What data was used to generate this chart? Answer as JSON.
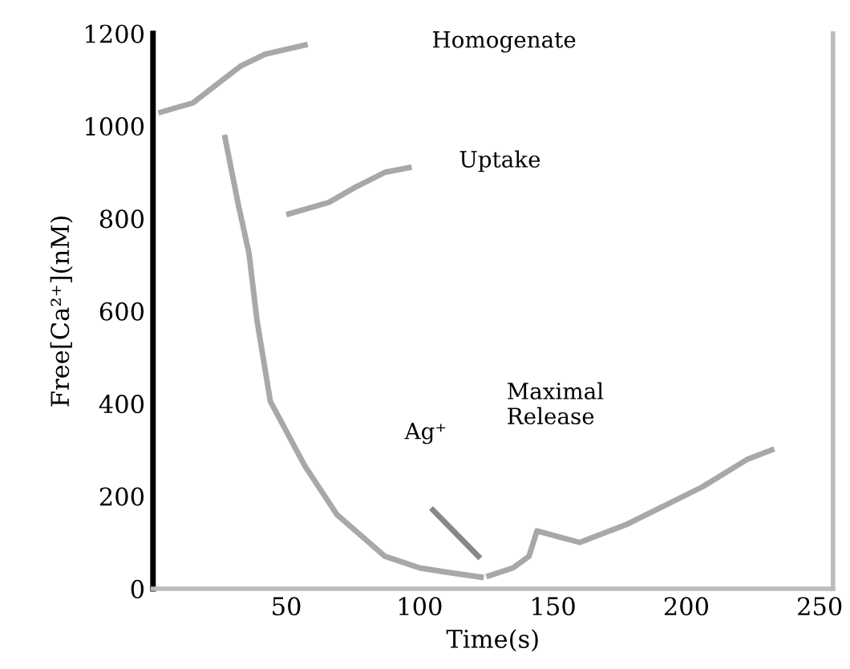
{
  "chart_data": {
    "type": "line",
    "xlabel": "Time(s)",
    "ylabel": "Free[Ca²⁺](nM)",
    "xlim": [
      0,
      255
    ],
    "ylim": [
      0,
      1200
    ],
    "xticks": [
      50,
      100,
      150,
      200,
      250
    ],
    "yticks": [
      0,
      200,
      400,
      600,
      800,
      1000,
      1200
    ],
    "grid": false,
    "line_style": "solid",
    "series": [
      {
        "color": "#a8a8a8",
        "x": [
          3,
          15,
          33,
          42,
          57
        ],
        "values": [
          1030,
          1050,
          1130,
          1155,
          1175
        ]
      },
      {
        "color": "#a8a8a8",
        "x": [
          27,
          32,
          36,
          39,
          44,
          57,
          69,
          87,
          100,
          111,
          123
        ],
        "values": [
          975,
          830,
          725,
          580,
          405,
          265,
          160,
          70,
          45,
          35,
          25
        ]
      },
      {
        "color": "#a8a8a8",
        "x": [
          51,
          66,
          75,
          87,
          96
        ],
        "values": [
          810,
          835,
          865,
          900,
          910
        ]
      },
      {
        "color": "#888888",
        "x": [
          105,
          122
        ],
        "values": [
          170,
          70
        ]
      },
      {
        "color": "#a8a8a8",
        "x": [
          126,
          135,
          141,
          144,
          160,
          178,
          206,
          223,
          232
        ],
        "values": [
          28,
          45,
          70,
          125,
          100,
          140,
          220,
          280,
          300
        ]
      }
    ],
    "annotations": [
      "Homogenate",
      "Uptake",
      "Ag⁺",
      "Maximal\nRelease"
    ]
  }
}
